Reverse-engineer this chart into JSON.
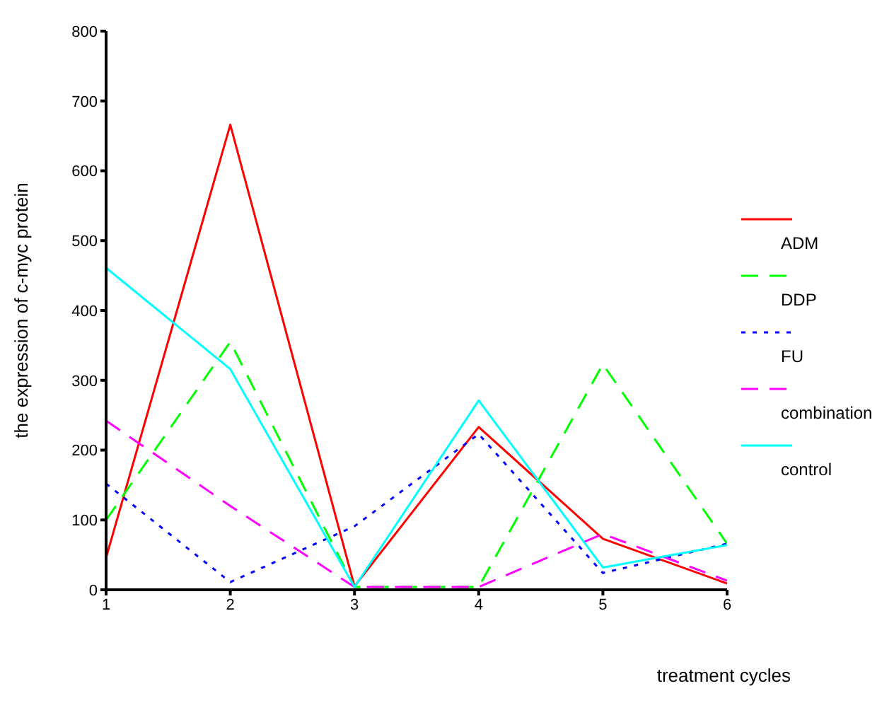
{
  "chart_data": {
    "type": "line",
    "xlabel": "treatment cycles",
    "ylabel": "the expression of c-myc protein",
    "x": [
      1,
      2,
      3,
      4,
      5,
      6
    ],
    "series": [
      {
        "name": "ADM",
        "color": "#ff0000",
        "line_style": "solid",
        "values": [
          46,
          666,
          5,
          233,
          73,
          9
        ]
      },
      {
        "name": "DDP",
        "color": "#00ff00",
        "line_style": "dashed",
        "values": [
          100,
          355,
          4,
          4,
          323,
          66
        ]
      },
      {
        "name": "FU",
        "color": "#0000ff",
        "line_style": "dotted",
        "values": [
          152,
          11,
          91,
          223,
          24,
          66
        ]
      },
      {
        "name": "combination",
        "color": "#ff00ff",
        "line_style": "dashed",
        "values": [
          242,
          120,
          4,
          4,
          80,
          13
        ]
      },
      {
        "name": "control",
        "color": "#00ffff",
        "line_style": "solid",
        "values": [
          461,
          316,
          4,
          271,
          32,
          64
        ]
      }
    ],
    "xlim": [
      1,
      6
    ],
    "xticks": [
      1,
      2,
      3,
      4,
      5,
      6
    ],
    "ylim": [
      0,
      800
    ],
    "yticks": [
      0,
      100,
      200,
      300,
      400,
      500,
      600,
      700,
      800
    ],
    "grid": false,
    "legend": "right",
    "marker": "none"
  }
}
